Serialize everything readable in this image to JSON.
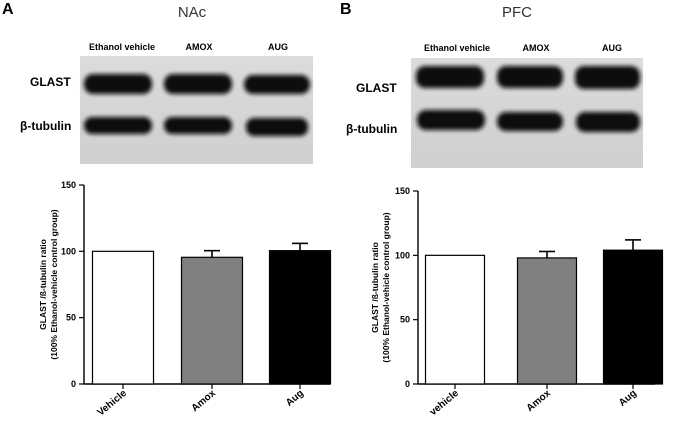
{
  "panels": [
    {
      "letter": "A",
      "region": "NAc",
      "lanes": [
        "Ethanol vehicle",
        "AMOX",
        "AUG"
      ],
      "rows": [
        "GLAST",
        "β-tubulin"
      ]
    },
    {
      "letter": "B",
      "region": "PFC",
      "lanes": [
        "Ethanol vehicle",
        "AMOX",
        "AUG"
      ],
      "rows": [
        "GLAST",
        "β-tubulin"
      ]
    }
  ],
  "chart_data": [
    {
      "type": "bar",
      "categories": [
        "Vehicle",
        "Amox",
        "Aug"
      ],
      "values": [
        100,
        95.5,
        100.5
      ],
      "errors": [
        0,
        5,
        5.5
      ],
      "colors": [
        "#ffffff",
        "#808080",
        "#000000"
      ],
      "ylabel_line1": "GLAST /ß-tubulin ratio",
      "ylabel_line2": "(100% Ethanol-vehicle control group)",
      "ylim": [
        0,
        150
      ],
      "yticks": [
        "0",
        "50",
        "100",
        "150"
      ],
      "grid": false
    },
    {
      "type": "bar",
      "categories": [
        "vehicle",
        "Amox",
        "Aug"
      ],
      "values": [
        100,
        98,
        104
      ],
      "errors": [
        0,
        5,
        8
      ],
      "colors": [
        "#ffffff",
        "#808080",
        "#000000"
      ],
      "ylabel_line1": "GLAST /ß-tubulin ratio",
      "ylabel_line2": "(100% Ethanol-vehicle control group)",
      "ylim": [
        0,
        150
      ],
      "yticks": [
        "0",
        "50",
        "100",
        "150"
      ],
      "grid": false
    }
  ]
}
